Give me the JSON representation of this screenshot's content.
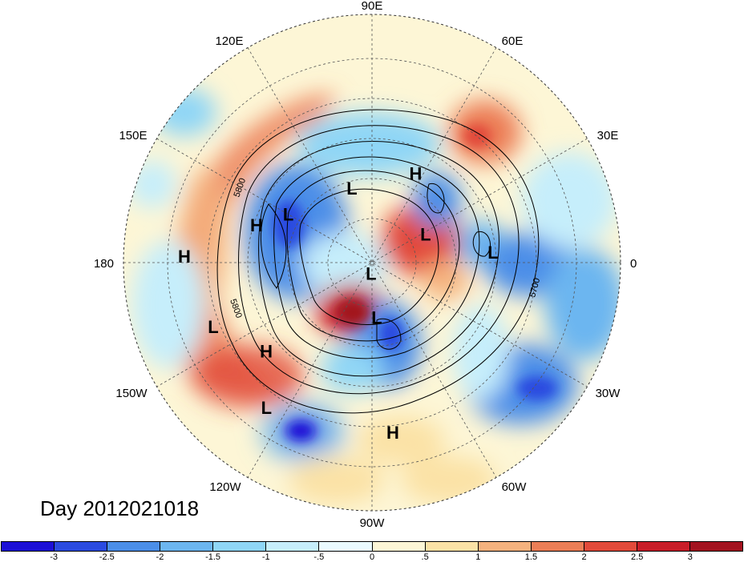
{
  "title": "Day 2012021018",
  "lon_labels": [
    "90E",
    "60E",
    "30E",
    "0",
    "30W",
    "60W",
    "90W",
    "120W",
    "150W",
    "180",
    "150E",
    "120E"
  ],
  "pressure_centers": [
    {
      "type": "H",
      "lon": 64,
      "lat": 54
    },
    {
      "type": "L",
      "lon": 105,
      "lat": 62
    },
    {
      "type": "H",
      "lon": 162,
      "lat": 46
    },
    {
      "type": "H",
      "lon": 178,
      "lat": 22
    },
    {
      "type": "L",
      "lon": 150,
      "lat": 55
    },
    {
      "type": "L",
      "lon": 28,
      "lat": 68
    },
    {
      "type": "L",
      "lon": 5,
      "lat": 46
    },
    {
      "type": "L",
      "lon": -95,
      "lat": 86
    },
    {
      "type": "L",
      "lon": -85,
      "lat": 70
    },
    {
      "type": "L",
      "lon": 202,
      "lat": 28
    },
    {
      "type": "H",
      "lon": -140,
      "lat": 40
    },
    {
      "type": "L",
      "lon": -126,
      "lat": 25
    },
    {
      "type": "H",
      "lon": -83,
      "lat": 28
    }
  ],
  "contour_labels": [
    "5800",
    "5800",
    "5700"
  ],
  "colorbar": {
    "colors": [
      "#1c0fd6",
      "#2b4be0",
      "#4b8ee8",
      "#6cb6f0",
      "#8fd6f6",
      "#c6eefb",
      "#eafaff",
      "#fdf6d6",
      "#fbe2a6",
      "#f5b27e",
      "#ec7e56",
      "#e24a3a",
      "#c91d28",
      "#a3121f"
    ],
    "labels": [
      "-3",
      "-2.5",
      "-2",
      "-1.5",
      "-1",
      "-.5",
      "0",
      ".5",
      "1",
      "1.5",
      "2",
      "2.5",
      "3"
    ]
  }
}
